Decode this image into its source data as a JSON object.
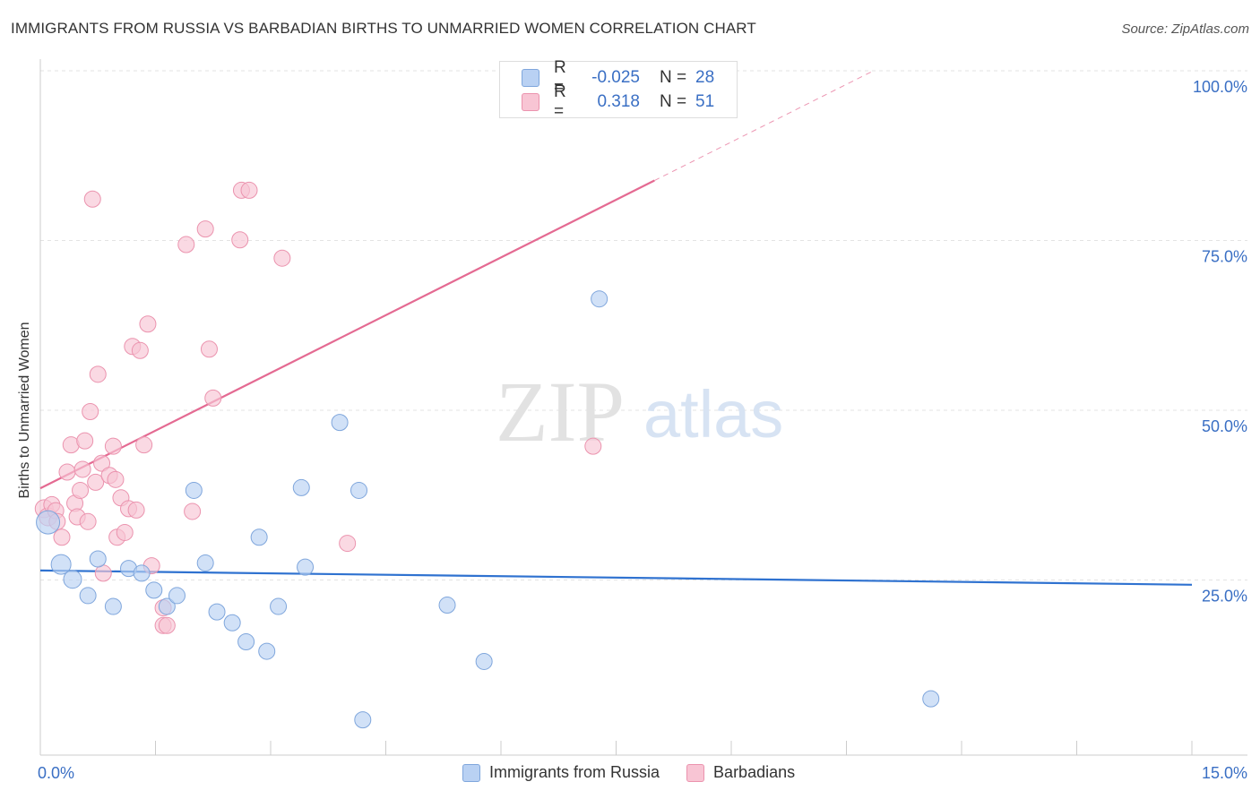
{
  "header": {
    "title": "IMMIGRANTS FROM RUSSIA VS BARBADIAN BIRTHS TO UNMARRIED WOMEN CORRELATION CHART",
    "source": "Source: ZipAtlas.com"
  },
  "watermark": {
    "zip": "ZIP",
    "atlas": "atlas"
  },
  "colors": {
    "russia_fill": "#b9d1f3",
    "russia_stroke": "#7fa6dc",
    "russia_line": "#2f72d0",
    "barb_fill": "#f8c5d4",
    "barb_stroke": "#eb93ae",
    "barb_line": "#e46a92",
    "axis_text": "#3a6fc4",
    "grid": "#e3e3e3"
  },
  "legend": {
    "rows": [
      {
        "r_label": "R =",
        "r_value": "-0.025",
        "n_label": "N =",
        "n_value": "28"
      },
      {
        "r_label": "R =",
        "r_value": "0.318",
        "n_label": "N =",
        "n_value": "51"
      }
    ]
  },
  "bottom_legend": {
    "series1": "Immigrants from Russia",
    "series2": "Barbadians"
  },
  "chart_data": {
    "type": "scatter",
    "title": "IMMIGRANTS FROM RUSSIA VS BARBADIAN BIRTHS TO UNMARRIED WOMEN CORRELATION CHART",
    "xlabel": "",
    "ylabel": "Births to Unmarried Women",
    "xlim": [
      0,
      15
    ],
    "ylim": [
      0,
      100
    ],
    "x_tick_labels": [
      "0.0%",
      "15.0%"
    ],
    "y_ticks": [
      25,
      50,
      75,
      100
    ],
    "y_tick_labels": [
      "25.0%",
      "50.0%",
      "75.0%",
      "100.0%"
    ],
    "series": [
      {
        "name": "Immigrants from Russia",
        "R": -0.025,
        "N": 28,
        "trend": {
          "x": [
            0,
            15
          ],
          "y": [
            26.4,
            24.3
          ],
          "dashed_from": null
        },
        "points": [
          [
            0.1,
            33.5
          ],
          [
            0.27,
            27.3
          ],
          [
            0.42,
            25.1
          ],
          [
            0.62,
            22.7
          ],
          [
            0.75,
            28.1
          ],
          [
            0.95,
            21.1
          ],
          [
            1.15,
            26.7
          ],
          [
            1.32,
            26.0
          ],
          [
            1.48,
            23.5
          ],
          [
            1.65,
            21.1
          ],
          [
            1.78,
            22.7
          ],
          [
            2.0,
            38.2
          ],
          [
            2.15,
            27.5
          ],
          [
            2.3,
            20.3
          ],
          [
            2.5,
            18.7
          ],
          [
            2.68,
            15.9
          ],
          [
            2.85,
            31.3
          ],
          [
            2.95,
            14.5
          ],
          [
            3.1,
            21.1
          ],
          [
            3.4,
            38.6
          ],
          [
            3.45,
            26.9
          ],
          [
            3.9,
            48.2
          ],
          [
            4.15,
            38.2
          ],
          [
            4.2,
            4.4
          ],
          [
            5.3,
            21.3
          ],
          [
            5.78,
            13.0
          ],
          [
            7.28,
            66.4
          ],
          [
            11.6,
            7.5
          ]
        ],
        "sizes": [
          13,
          11,
          10,
          9,
          9,
          9,
          9,
          9,
          9,
          9,
          9,
          9,
          9,
          9,
          9,
          9,
          9,
          9,
          9,
          9,
          9,
          9,
          9,
          9,
          9,
          9,
          9,
          9
        ]
      },
      {
        "name": "Barbadians",
        "R": 0.318,
        "N": 51,
        "trend": {
          "x": [
            0,
            15
          ],
          "y": [
            38.5,
            123.5
          ],
          "dashed_from": 8.0
        },
        "points": [
          [
            0.05,
            35.5
          ],
          [
            0.1,
            34.3
          ],
          [
            0.15,
            36.1
          ],
          [
            0.2,
            35.2
          ],
          [
            0.22,
            33.6
          ],
          [
            0.28,
            31.3
          ],
          [
            0.35,
            40.9
          ],
          [
            0.4,
            44.9
          ],
          [
            0.45,
            36.3
          ],
          [
            0.48,
            34.3
          ],
          [
            0.52,
            38.2
          ],
          [
            0.55,
            41.3
          ],
          [
            0.58,
            45.5
          ],
          [
            0.62,
            33.6
          ],
          [
            0.65,
            49.8
          ],
          [
            0.68,
            81.1
          ],
          [
            0.72,
            39.4
          ],
          [
            0.75,
            55.3
          ],
          [
            0.8,
            42.2
          ],
          [
            0.82,
            26.0
          ],
          [
            0.9,
            40.4
          ],
          [
            0.95,
            44.7
          ],
          [
            0.98,
            39.8
          ],
          [
            1.0,
            31.3
          ],
          [
            1.05,
            37.1
          ],
          [
            1.1,
            32.0
          ],
          [
            1.15,
            35.5
          ],
          [
            1.2,
            59.4
          ],
          [
            1.25,
            35.3
          ],
          [
            1.3,
            58.8
          ],
          [
            1.35,
            44.9
          ],
          [
            1.4,
            62.7
          ],
          [
            1.45,
            27.1
          ],
          [
            1.6,
            20.9
          ],
          [
            1.6,
            18.3
          ],
          [
            1.65,
            18.3
          ],
          [
            1.9,
            74.4
          ],
          [
            1.98,
            35.1
          ],
          [
            2.15,
            76.7
          ],
          [
            2.2,
            59.0
          ],
          [
            2.25,
            51.8
          ],
          [
            2.6,
            75.1
          ],
          [
            2.62,
            82.4
          ],
          [
            2.72,
            82.4
          ],
          [
            3.15,
            72.4
          ],
          [
            4.0,
            30.4
          ],
          [
            7.2,
            44.7
          ]
        ],
        "sizes": [
          10,
          10,
          9,
          9,
          9,
          9,
          9,
          9,
          9,
          9,
          9,
          9,
          9,
          9,
          9,
          9,
          9,
          9,
          9,
          9,
          9,
          9,
          9,
          9,
          9,
          9,
          9,
          9,
          9,
          9,
          9,
          9,
          9,
          9,
          9,
          9,
          9,
          9,
          9,
          9,
          9,
          9,
          9,
          9,
          9,
          9,
          9
        ]
      }
    ]
  }
}
